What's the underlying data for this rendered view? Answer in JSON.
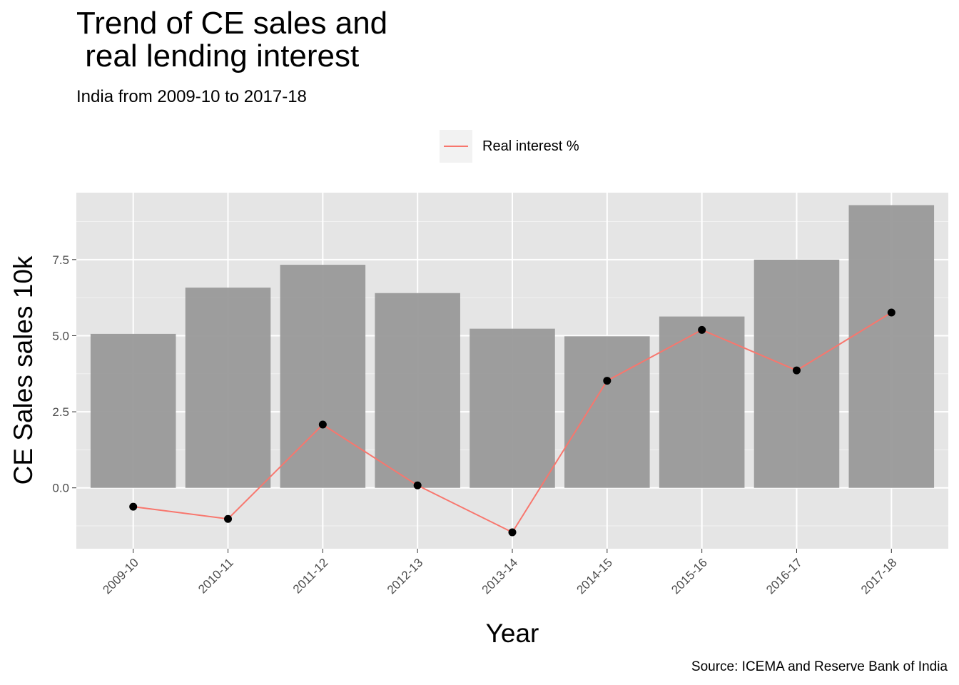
{
  "chart_data": {
    "type": "bar",
    "title": "Trend of CE sales and\n real lending interest",
    "subtitle": "India from 2009-10 to 2017-18",
    "xlabel": "Year",
    "ylabel": "CE Sales sales 10k",
    "caption": "Source: ICEMA and Reserve Bank of India",
    "categories": [
      "2009-10",
      "2010-11",
      "2011-12",
      "2012-13",
      "2013-14",
      "2014-15",
      "2015-16",
      "2016-17",
      "2017-18"
    ],
    "series": [
      {
        "type": "bar",
        "values": [
          5.06,
          6.58,
          7.33,
          6.4,
          5.23,
          4.98,
          5.63,
          7.5,
          9.29
        ]
      },
      {
        "type": "line",
        "name": "Real interest %",
        "values": [
          -0.62,
          -1.02,
          2.08,
          0.08,
          -1.46,
          3.52,
          5.19,
          3.86,
          5.76
        ]
      }
    ],
    "ylim": [
      -2.0,
      9.7
    ],
    "yticks": [
      0.0,
      2.5,
      5.0,
      7.5
    ],
    "ytick_labels": [
      "0.0",
      "2.5",
      "5.0",
      "7.5"
    ],
    "grid": true,
    "legend_position": "top",
    "colors": {
      "panel": "#e5e5e5",
      "bar": "#999999",
      "line": "#f8766d",
      "point": "#000000"
    }
  }
}
